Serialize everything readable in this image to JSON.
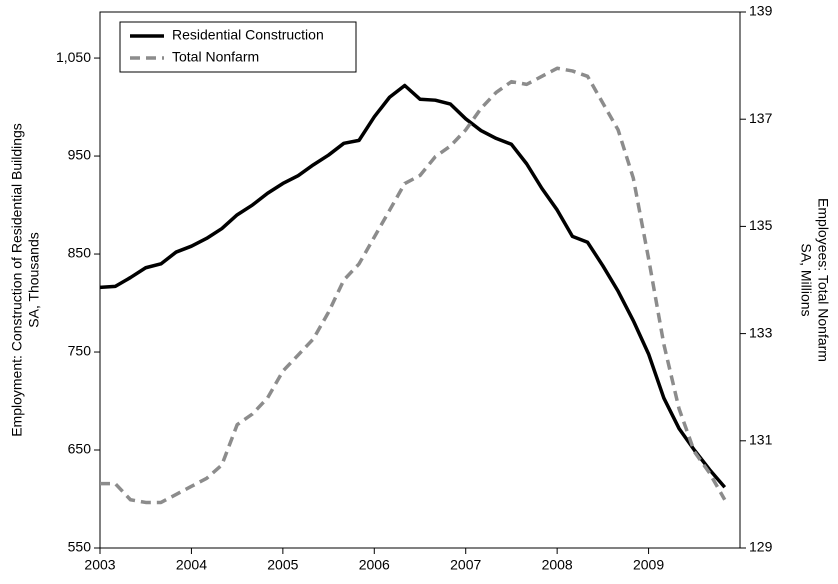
{
  "chart_data": {
    "type": "line",
    "ylabel": [
      "Employment: Construction of Residential Buildings",
      "SA, Thousands"
    ],
    "y2label": [
      "Employees: Total Nonfarm",
      "SA, Millions"
    ],
    "x": [
      2003.0,
      2003.167,
      2003.333,
      2003.5,
      2003.667,
      2003.833,
      2004.0,
      2004.167,
      2004.333,
      2004.5,
      2004.667,
      2004.833,
      2005.0,
      2005.167,
      2005.333,
      2005.5,
      2005.667,
      2005.833,
      2006.0,
      2006.167,
      2006.333,
      2006.5,
      2006.667,
      2006.833,
      2007.0,
      2007.167,
      2007.333,
      2007.5,
      2007.667,
      2007.833,
      2008.0,
      2008.167,
      2008.333,
      2008.5,
      2008.667,
      2008.833,
      2009.0,
      2009.167,
      2009.333,
      2009.5,
      2009.667,
      2009.833
    ],
    "series": [
      {
        "name": "Residential Construction",
        "color": "#000000",
        "dashed": false,
        "values": [
          816,
          817,
          826,
          836,
          840,
          852,
          858,
          866,
          876,
          890,
          900,
          912,
          922,
          930,
          941,
          951,
          963,
          966,
          990,
          1010,
          1022,
          1008,
          1007,
          1003,
          988,
          976,
          968,
          962,
          942,
          917,
          895,
          868,
          862,
          838,
          812,
          782,
          748,
          703,
          672,
          650,
          630,
          612
        ]
      },
      {
        "name": "Total Nonfarm",
        "color": "#8c8c8c",
        "dashed": true,
        "axis": "y2",
        "values": [
          130.2,
          130.2,
          129.9,
          129.85,
          129.85,
          130.0,
          130.15,
          130.3,
          130.55,
          131.3,
          131.5,
          131.8,
          132.3,
          132.6,
          132.9,
          133.4,
          134.0,
          134.3,
          134.8,
          135.3,
          135.8,
          135.95,
          136.3,
          136.5,
          136.8,
          137.2,
          137.5,
          137.7,
          137.65,
          137.8,
          137.95,
          137.9,
          137.8,
          137.3,
          136.8,
          135.9,
          134.4,
          132.8,
          131.6,
          130.8,
          130.4,
          129.9
        ]
      }
    ],
    "xlim": [
      2003,
      2010
    ],
    "xticks": [
      2003,
      2004,
      2005,
      2006,
      2007,
      2008,
      2009
    ],
    "ylim": [
      550,
      1097
    ],
    "yticks": [
      550,
      650,
      750,
      850,
      950,
      {
        "value": 1050,
        "label": "1,050"
      }
    ],
    "y2lim": [
      129,
      139
    ],
    "y2ticks": [
      129,
      131,
      133,
      135,
      137,
      139
    ],
    "grid": false,
    "legend": "upper left"
  }
}
